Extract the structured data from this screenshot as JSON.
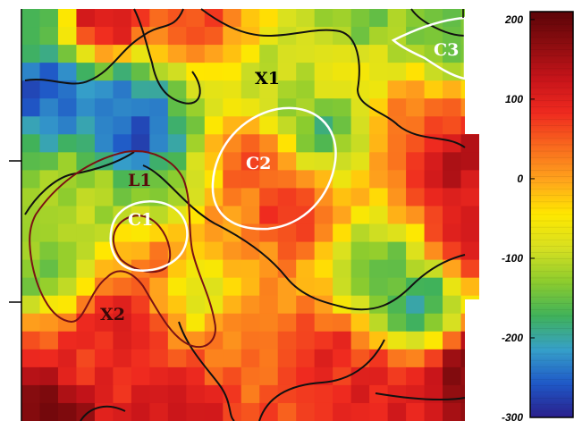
{
  "chart_data": {
    "type": "heatmap",
    "title": "",
    "xlabel": "",
    "ylabel": "",
    "grid": false,
    "colorbar": {
      "position": "right",
      "range": [
        -300,
        210
      ],
      "ticks": [
        200,
        100,
        0,
        -100,
        -200,
        -300
      ],
      "tick_labels": [
        "200",
        "100",
        "0",
        "-100",
        "-200",
        "-300"
      ],
      "colormap": [
        "#2a1f8c",
        "#1f58c7",
        "#36a0c9",
        "#40b25a",
        "#8ccc2e",
        "#d7e021",
        "#ffe800",
        "#ffa51c",
        "#f96a1e",
        "#ef2a1f",
        "#c8141a",
        "#8e0d10",
        "#5c0408"
      ]
    },
    "grid_shape": {
      "cols": 25,
      "rows": 23
    },
    "anchors": [
      {
        "c": 0,
        "r": 0,
        "v": -170
      },
      {
        "c": 4,
        "r": 0,
        "v": 120
      },
      {
        "c": 9,
        "r": 0,
        "v": 60
      },
      {
        "c": 18,
        "r": 0,
        "v": -140
      },
      {
        "c": 23,
        "r": 1,
        "v": -150
      },
      {
        "c": 1,
        "r": 4,
        "v": -260
      },
      {
        "c": 5,
        "r": 5,
        "v": -240
      },
      {
        "c": 6,
        "r": 7,
        "v": -280
      },
      {
        "c": 7,
        "r": 9,
        "v": -140
      },
      {
        "c": 3,
        "r": 10,
        "v": -110
      },
      {
        "c": 14,
        "r": 4,
        "v": -110
      },
      {
        "c": 16,
        "r": 6,
        "v": -170
      },
      {
        "c": 17,
        "r": 3,
        "v": -60
      },
      {
        "c": 12,
        "r": 8,
        "v": 60
      },
      {
        "c": 14,
        "r": 11,
        "v": 80
      },
      {
        "c": 21,
        "r": 6,
        "v": 40
      },
      {
        "c": 23,
        "r": 8,
        "v": 140
      },
      {
        "c": 24,
        "r": 12,
        "v": 110
      },
      {
        "c": 19,
        "r": 14,
        "v": -150
      },
      {
        "c": 21,
        "r": 16,
        "v": -190
      },
      {
        "c": 9,
        "r": 15,
        "v": -90
      },
      {
        "c": 1,
        "r": 14,
        "v": -140
      },
      {
        "c": 5,
        "r": 17,
        "v": 110
      },
      {
        "c": 7,
        "r": 14,
        "v": 30
      },
      {
        "c": 3,
        "r": 19,
        "v": 80
      },
      {
        "c": 12,
        "r": 18,
        "v": 30
      },
      {
        "c": 16,
        "r": 19,
        "v": 90
      },
      {
        "c": 1,
        "r": 22,
        "v": 190
      },
      {
        "c": 8,
        "r": 22,
        "v": 120
      },
      {
        "c": 19,
        "r": 21,
        "v": 100
      },
      {
        "c": 24,
        "r": 20,
        "v": 180
      },
      {
        "c": 11,
        "r": 12,
        "v": 10
      }
    ],
    "annotations": [
      {
        "id": "x1",
        "text": "X1"
      },
      {
        "id": "x2",
        "text": "X2"
      },
      {
        "id": "l1",
        "text": "L1"
      },
      {
        "id": "c1",
        "text": "C1"
      },
      {
        "id": "c2",
        "text": "C2"
      },
      {
        "id": "c3",
        "text": "C3"
      }
    ],
    "contours": [
      {
        "name": "c1-contour",
        "color": "#ffffff"
      },
      {
        "name": "c2-contour",
        "color": "#ffffff"
      },
      {
        "name": "c3-contour",
        "color": "#ffffff"
      },
      {
        "name": "l1-contour",
        "color": "#7a1214"
      },
      {
        "name": "black-contour",
        "color": "#111111"
      }
    ]
  },
  "annotation_colors": {
    "white": "#ffffff",
    "black": "#000000",
    "darkred": "#5a0a0a"
  }
}
